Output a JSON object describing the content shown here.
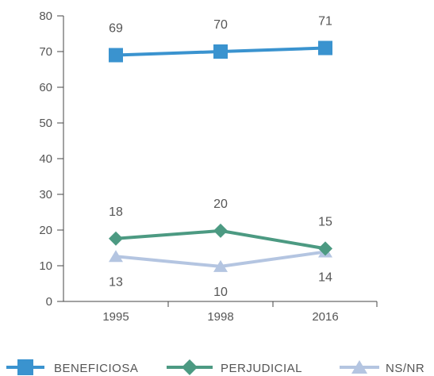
{
  "chart_data": {
    "type": "line",
    "categories": [
      "1995",
      "1998",
      "2016"
    ],
    "ylim": [
      0,
      80
    ],
    "y_ticks": [
      0,
      10,
      20,
      30,
      40,
      50,
      60,
      70,
      80
    ],
    "grid": false,
    "legend_position": "bottom",
    "series": [
      {
        "name": "BENEFICIOSA",
        "values": [
          69,
          70,
          71
        ],
        "labels": [
          "69",
          "70",
          "71"
        ],
        "color": "#3a93cf",
        "marker": "square",
        "label_position": "above"
      },
      {
        "name": "PERJUDICIAL",
        "values": [
          17.6,
          19.8,
          14.8
        ],
        "labels": [
          "18",
          "20",
          "15"
        ],
        "color": "#4c9a82",
        "marker": "diamond",
        "label_position": "above"
      },
      {
        "name": "NS/NR",
        "values": [
          12.6,
          9.8,
          13.9
        ],
        "labels": [
          "13",
          "10",
          "14"
        ],
        "color": "#b4c5e1",
        "marker": "triangle",
        "label_position": "below"
      }
    ]
  }
}
